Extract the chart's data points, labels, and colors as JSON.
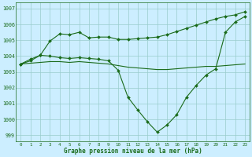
{
  "xlabel": "Graphe pression niveau de la mer (hPa)",
  "hours": [
    0,
    1,
    2,
    3,
    4,
    5,
    6,
    7,
    8,
    9,
    10,
    11,
    12,
    13,
    14,
    15,
    16,
    17,
    18,
    19,
    20,
    21,
    22,
    23
  ],
  "line_upper": [
    1003.5,
    1003.7,
    1004.05,
    1004.95,
    1005.4,
    1005.35,
    1005.5,
    1005.15,
    1005.2,
    1005.2,
    1005.05,
    1005.05,
    1005.1,
    1005.15,
    1005.2,
    1005.35,
    1005.55,
    1005.75,
    1005.95,
    1006.15,
    1006.35,
    1006.5,
    1006.6,
    1006.8
  ],
  "line_dip": [
    1003.5,
    1003.8,
    1004.05,
    1004.0,
    1003.9,
    1003.85,
    1003.9,
    1003.85,
    1003.8,
    1003.7,
    1003.1,
    1001.4,
    1000.6,
    999.85,
    999.2,
    999.65,
    1000.3,
    1001.4,
    1002.15,
    1002.8,
    1003.2,
    1005.5,
    1006.15,
    1006.5
  ],
  "line_flat": [
    1003.5,
    1003.55,
    1003.6,
    1003.65,
    1003.65,
    1003.6,
    1003.65,
    1003.6,
    1003.55,
    1003.5,
    1003.4,
    1003.3,
    1003.25,
    1003.2,
    1003.15,
    1003.15,
    1003.2,
    1003.25,
    1003.3,
    1003.35,
    1003.35,
    1003.4,
    1003.45,
    1003.5
  ],
  "line_color": "#1a6b1a",
  "bg_color": "#cceeff",
  "grid_color": "#99cccc",
  "ylim_min": 998.6,
  "ylim_max": 1007.4,
  "yticks": [
    999,
    1000,
    1001,
    1002,
    1003,
    1004,
    1005,
    1006,
    1007
  ],
  "xticks": [
    0,
    1,
    2,
    3,
    4,
    5,
    6,
    7,
    8,
    9,
    10,
    11,
    12,
    13,
    14,
    15,
    16,
    17,
    18,
    19,
    20,
    21,
    22,
    23
  ],
  "markersize": 2.0,
  "linewidth": 0.8
}
